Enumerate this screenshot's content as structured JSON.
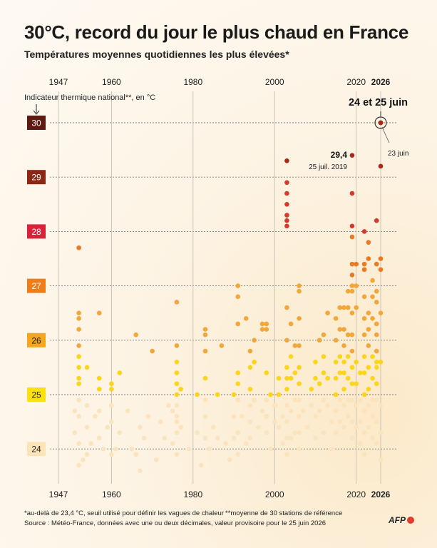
{
  "header": {
    "title": "30°C, record du jour le plus chaud en France",
    "subtitle": "Températures moyennes quotidiennes les plus élevées*"
  },
  "footer": {
    "note1": "*au-delà de 23,4 °C, seuil utilisé pour définir les vagues de chaleur",
    "note2": "**moyenne de 30 stations de référence",
    "source": "Source : Météo-France, données avec une ou deux décimales, valeur provisoire pour le 25 juin 2026",
    "logo": "AFP"
  },
  "chart_data": {
    "type": "scatter",
    "title": "30°C, record du jour le plus chaud en France",
    "subtitle": "Températures moyennes quotidiennes les plus élevées*",
    "ylabel": "Indicateur thermique national**, en °C",
    "xlim": [
      1947,
      2026
    ],
    "ylim": [
      23.4,
      30.5
    ],
    "x_ticks": [
      "1947",
      "1960",
      "1980",
      "2000",
      "2020",
      "2026"
    ],
    "x_ticks_bold": [
      "2026"
    ],
    "y_ticks": [
      30,
      29,
      28,
      27,
      26,
      25,
      24
    ],
    "y_tick_colors": {
      "30": "#5e1a12",
      "29": "#8c2615",
      "28": "#d9213a",
      "27": "#ee7d1a",
      "26": "#f3a61e",
      "25": "#fde012",
      "24": "#fde4b8"
    },
    "grid": "horizontal dotted at each degree, vertical lines at labeled years",
    "color_scale": [
      {
        "from": 23.4,
        "to": 25.0,
        "color": "#fbe3bd"
      },
      {
        "from": 25.0,
        "to": 25.8,
        "color": "#fad51c"
      },
      {
        "from": 25.8,
        "to": 27.2,
        "color": "#f3a73a"
      },
      {
        "from": 27.2,
        "to": 28.0,
        "color": "#e97a22"
      },
      {
        "from": 28.0,
        "to": 29.0,
        "color": "#d63a2c"
      },
      {
        "from": 29.0,
        "to": 31.0,
        "color": "#a92818"
      }
    ],
    "annotations": [
      {
        "text": "24 et 25 juin",
        "x": 2026,
        "y": 30.0
      },
      {
        "text": "23 juin",
        "x": 2026,
        "y": 29.2
      },
      {
        "text": "29,4",
        "x": 2019,
        "y": 29.4
      },
      {
        "text": "25 juil. 2019",
        "x": 2019,
        "y": 29.4
      }
    ],
    "points": [
      [
        1952,
        27.7
      ],
      [
        1952,
        26.5
      ],
      [
        1952,
        26.4
      ],
      [
        1952,
        26.2
      ],
      [
        1952,
        25.9
      ],
      [
        1952,
        25.7
      ],
      [
        1952,
        25.5
      ],
      [
        1952,
        25.3
      ],
      [
        1952,
        25.2
      ],
      [
        1952,
        24.9
      ],
      [
        1952,
        24.6
      ],
      [
        1952,
        24.1
      ],
      [
        1952,
        23.7
      ],
      [
        1954,
        25.5
      ],
      [
        1954,
        24.8
      ],
      [
        1954,
        24.4
      ],
      [
        1954,
        23.9
      ],
      [
        1957,
        26.5
      ],
      [
        1957,
        25.3
      ],
      [
        1957,
        25.1
      ],
      [
        1957,
        24.7
      ],
      [
        1957,
        24.2
      ],
      [
        1951,
        24.3
      ],
      [
        1951,
        24.7
      ],
      [
        1953,
        23.8
      ],
      [
        1955,
        24.1
      ],
      [
        1956,
        24.6
      ],
      [
        1958,
        24.0
      ],
      [
        1960,
        25.2
      ],
      [
        1960,
        25.1
      ],
      [
        1960,
        24.8
      ],
      [
        1960,
        24.5
      ],
      [
        1960,
        23.9
      ],
      [
        1959,
        24.4
      ],
      [
        1961,
        24.0
      ],
      [
        1962,
        25.4
      ],
      [
        1962,
        24.3
      ],
      [
        1964,
        24.7
      ],
      [
        1965,
        24.0
      ],
      [
        1966,
        26.1
      ],
      [
        1967,
        24.4
      ],
      [
        1966,
        23.9
      ],
      [
        1967,
        23.6
      ],
      [
        1969,
        24.6
      ],
      [
        1968,
        24.2
      ],
      [
        1970,
        25.8
      ],
      [
        1971,
        23.8
      ],
      [
        1972,
        24.5
      ],
      [
        1973,
        24.2
      ],
      [
        1974,
        24.8
      ],
      [
        1975,
        24.7
      ],
      [
        1975,
        24.1
      ],
      [
        1976,
        26.7
      ],
      [
        1976,
        25.9
      ],
      [
        1976,
        25.6
      ],
      [
        1976,
        25.4
      ],
      [
        1976,
        25.2
      ],
      [
        1976,
        25.0
      ],
      [
        1976,
        24.8
      ],
      [
        1976,
        24.6
      ],
      [
        1976,
        24.5
      ],
      [
        1976,
        24.3
      ],
      [
        1976,
        23.9
      ],
      [
        1977,
        25.1
      ],
      [
        1977,
        24.4
      ],
      [
        1979,
        24.0
      ],
      [
        1981,
        25.0
      ],
      [
        1981,
        24.3
      ],
      [
        1982,
        23.7
      ],
      [
        1983,
        26.2
      ],
      [
        1983,
        26.1
      ],
      [
        1983,
        25.8
      ],
      [
        1983,
        25.3
      ],
      [
        1983,
        24.9
      ],
      [
        1983,
        24.6
      ],
      [
        1983,
        24.2
      ],
      [
        1984,
        24.0
      ],
      [
        1985,
        24.4
      ],
      [
        1986,
        25.0
      ],
      [
        1986,
        24.2
      ],
      [
        1987,
        25.9
      ],
      [
        1988,
        24.1
      ],
      [
        1989,
        23.8
      ],
      [
        1990,
        25.0
      ],
      [
        1990,
        24.6
      ],
      [
        1990,
        24.2
      ],
      [
        1991,
        27.0
      ],
      [
        1991,
        26.8
      ],
      [
        1991,
        26.3
      ],
      [
        1991,
        25.4
      ],
      [
        1991,
        25.2
      ],
      [
        1991,
        24.9
      ],
      [
        1991,
        24.3
      ],
      [
        1991,
        23.9
      ],
      [
        1992,
        24.6
      ],
      [
        1993,
        26.4
      ],
      [
        1993,
        24.1
      ],
      [
        1994,
        25.8
      ],
      [
        1994,
        25.5
      ],
      [
        1994,
        25.1
      ],
      [
        1994,
        24.8
      ],
      [
        1994,
        24.5
      ],
      [
        1994,
        24.2
      ],
      [
        1995,
        26.0
      ],
      [
        1995,
        25.6
      ],
      [
        1995,
        24.9
      ],
      [
        1996,
        24.4
      ],
      [
        1997,
        26.3
      ],
      [
        1997,
        26.2
      ],
      [
        1997,
        24.7
      ],
      [
        1998,
        26.3
      ],
      [
        1998,
        26.2
      ],
      [
        1998,
        25.4
      ],
      [
        1998,
        24.9
      ],
      [
        1998,
        24.6
      ],
      [
        1998,
        24.3
      ],
      [
        1999,
        25.0
      ],
      [
        1999,
        24.0
      ],
      [
        2000,
        24.8
      ],
      [
        2000,
        24.5
      ],
      [
        2001,
        25.3
      ],
      [
        2001,
        25.0
      ],
      [
        2001,
        24.4
      ],
      [
        2002,
        24.6
      ],
      [
        2002,
        24.1
      ],
      [
        2003,
        29.3
      ],
      [
        2003,
        28.9
      ],
      [
        2003,
        28.7
      ],
      [
        2003,
        28.5
      ],
      [
        2003,
        28.3
      ],
      [
        2003,
        28.2
      ],
      [
        2003,
        28.1
      ],
      [
        2003,
        26.6
      ],
      [
        2003,
        26.0
      ],
      [
        2003,
        25.5
      ],
      [
        2003,
        25.3
      ],
      [
        2003,
        25.1
      ],
      [
        2003,
        24.8
      ],
      [
        2003,
        24.5
      ],
      [
        2003,
        24.2
      ],
      [
        2003,
        23.9
      ],
      [
        2004,
        26.3
      ],
      [
        2004,
        25.7
      ],
      [
        2004,
        25.3
      ],
      [
        2004,
        24.7
      ],
      [
        2004,
        24.2
      ],
      [
        2005,
        25.9
      ],
      [
        2005,
        25.4
      ],
      [
        2005,
        24.9
      ],
      [
        2005,
        24.3
      ],
      [
        2006,
        27.0
      ],
      [
        2006,
        26.9
      ],
      [
        2006,
        26.4
      ],
      [
        2006,
        25.9
      ],
      [
        2006,
        25.5
      ],
      [
        2006,
        25.2
      ],
      [
        2006,
        24.9
      ],
      [
        2006,
        24.6
      ],
      [
        2006,
        24.3
      ],
      [
        2006,
        24.0
      ],
      [
        2007,
        24.7
      ],
      [
        2008,
        24.4
      ],
      [
        2009,
        25.1
      ],
      [
        2009,
        24.8
      ],
      [
        2010,
        25.6
      ],
      [
        2010,
        25.3
      ],
      [
        2010,
        24.6
      ],
      [
        2010,
        24.2
      ],
      [
        2011,
        26.0
      ],
      [
        2011,
        25.2
      ],
      [
        2011,
        24.7
      ],
      [
        2012,
        26.1
      ],
      [
        2012,
        25.7
      ],
      [
        2012,
        25.4
      ],
      [
        2012,
        24.9
      ],
      [
        2012,
        24.3
      ],
      [
        2013,
        26.5
      ],
      [
        2013,
        25.3
      ],
      [
        2013,
        24.8
      ],
      [
        2014,
        24.5
      ],
      [
        2014,
        24.0
      ],
      [
        2015,
        26.4
      ],
      [
        2015,
        26.0
      ],
      [
        2015,
        25.6
      ],
      [
        2015,
        25.3
      ],
      [
        2015,
        25.0
      ],
      [
        2015,
        24.7
      ],
      [
        2015,
        24.3
      ],
      [
        2016,
        26.6
      ],
      [
        2016,
        26.2
      ],
      [
        2016,
        25.7
      ],
      [
        2016,
        25.4
      ],
      [
        2016,
        24.9
      ],
      [
        2016,
        24.5
      ],
      [
        2017,
        26.6
      ],
      [
        2017,
        26.2
      ],
      [
        2017,
        25.9
      ],
      [
        2017,
        25.6
      ],
      [
        2017,
        25.4
      ],
      [
        2017,
        25.1
      ],
      [
        2017,
        24.8
      ],
      [
        2017,
        24.4
      ],
      [
        2018,
        26.9
      ],
      [
        2018,
        26.6
      ],
      [
        2018,
        26.1
      ],
      [
        2018,
        25.7
      ],
      [
        2018,
        25.3
      ],
      [
        2018,
        24.9
      ],
      [
        2018,
        24.6
      ],
      [
        2019,
        29.4
      ],
      [
        2019,
        28.7
      ],
      [
        2019,
        28.1
      ],
      [
        2019,
        27.9
      ],
      [
        2019,
        27.4
      ],
      [
        2019,
        27.2
      ],
      [
        2019,
        27.0
      ],
      [
        2019,
        26.9
      ],
      [
        2019,
        26.5
      ],
      [
        2019,
        26.1
      ],
      [
        2019,
        25.8
      ],
      [
        2019,
        25.5
      ],
      [
        2019,
        25.2
      ],
      [
        2019,
        24.9
      ],
      [
        2019,
        24.5
      ],
      [
        2019,
        24.2
      ],
      [
        2020,
        27.4
      ],
      [
        2020,
        27.0
      ],
      [
        2020,
        26.6
      ],
      [
        2020,
        25.6
      ],
      [
        2020,
        25.2
      ],
      [
        2020,
        24.8
      ],
      [
        2020,
        24.4
      ],
      [
        2021,
        25.4
      ],
      [
        2021,
        24.9
      ],
      [
        2021,
        24.5
      ],
      [
        2021,
        24.1
      ],
      [
        2022,
        28.0
      ],
      [
        2022,
        27.4
      ],
      [
        2022,
        27.3
      ],
      [
        2022,
        26.8
      ],
      [
        2022,
        26.4
      ],
      [
        2022,
        26.1
      ],
      [
        2022,
        25.7
      ],
      [
        2022,
        25.4
      ],
      [
        2022,
        25.0
      ],
      [
        2022,
        24.7
      ],
      [
        2022,
        24.3
      ],
      [
        2022,
        23.9
      ],
      [
        2023,
        27.8
      ],
      [
        2023,
        27.5
      ],
      [
        2023,
        26.5
      ],
      [
        2023,
        26.2
      ],
      [
        2023,
        25.9
      ],
      [
        2023,
        25.5
      ],
      [
        2023,
        25.1
      ],
      [
        2023,
        24.8
      ],
      [
        2023,
        24.4
      ],
      [
        2024,
        27.1
      ],
      [
        2024,
        26.8
      ],
      [
        2024,
        26.4
      ],
      [
        2024,
        25.7
      ],
      [
        2024,
        25.3
      ],
      [
        2024,
        24.9
      ],
      [
        2024,
        24.6
      ],
      [
        2024,
        24.2
      ],
      [
        2025,
        28.2
      ],
      [
        2025,
        27.4
      ],
      [
        2025,
        26.9
      ],
      [
        2025,
        26.7
      ],
      [
        2025,
        26.3
      ],
      [
        2025,
        26.1
      ],
      [
        2025,
        25.8
      ],
      [
        2025,
        25.6
      ],
      [
        2025,
        25.5
      ],
      [
        2025,
        25.2
      ],
      [
        2025,
        24.9
      ],
      [
        2025,
        24.5
      ],
      [
        2025,
        24.1
      ],
      [
        2026,
        30.0
      ],
      [
        2026,
        30.0
      ],
      [
        2026,
        29.2
      ],
      [
        2026,
        27.5
      ],
      [
        2026,
        27.3
      ],
      [
        2026,
        26.5
      ],
      [
        2026,
        25.6
      ],
      [
        2026,
        24.8
      ],
      [
        2026,
        24.3
      ],
      [
        2026,
        23.8
      ]
    ]
  }
}
